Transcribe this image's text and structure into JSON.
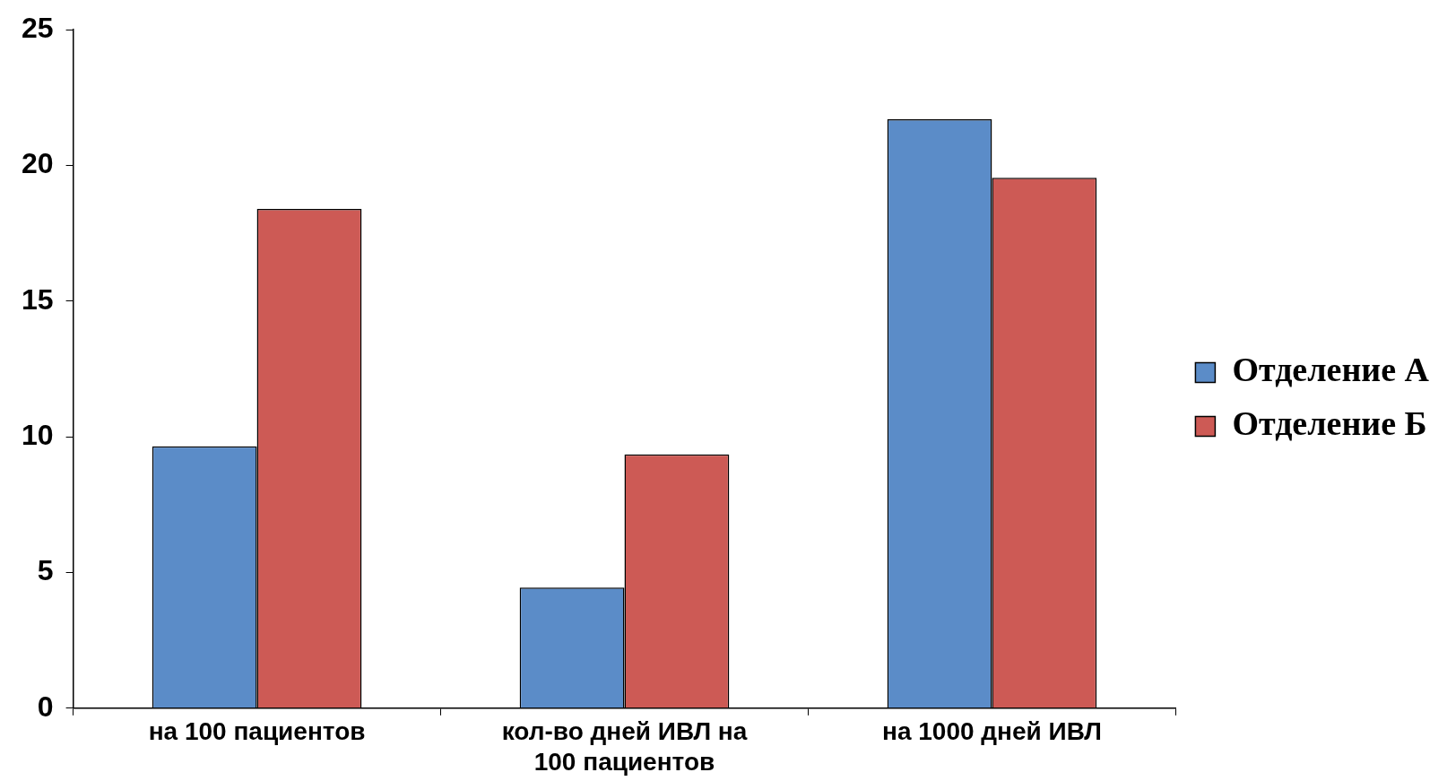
{
  "chart_data": {
    "type": "bar",
    "categories": [
      "на 100 пациентов",
      "кол-во дней ИВЛ на 100 пациентов",
      "на 1000 дней ИВЛ"
    ],
    "series": [
      {
        "name": "Отделение А",
        "color": "#5b8cc8",
        "values": [
          9.65,
          4.45,
          21.7
        ]
      },
      {
        "name": "Отделение Б",
        "color": "#cd5a55",
        "values": [
          18.4,
          9.35,
          19.55
        ]
      }
    ],
    "ylim": [
      0,
      25
    ],
    "yticks": [
      0,
      5,
      10,
      15,
      20,
      25
    ],
    "legend": "right"
  }
}
